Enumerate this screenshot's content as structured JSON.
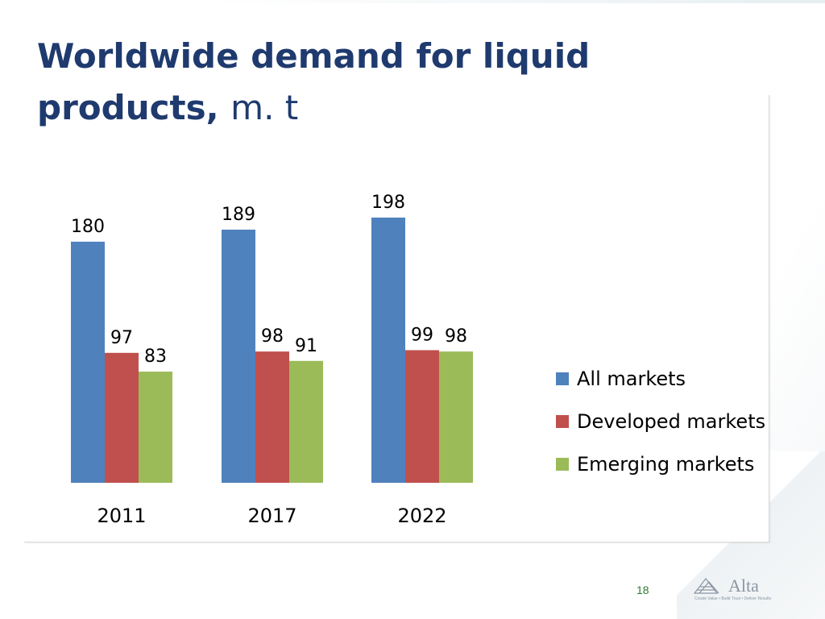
{
  "slide": {
    "title_bold": "Worldwide demand for liquid products,",
    "title_unit": "m. t",
    "page_number": "18",
    "logo": {
      "name": "Alta",
      "tagline": "Create Value • Build Trust • Deliver Results"
    }
  },
  "chart_data": {
    "type": "bar",
    "title": "",
    "xlabel": "",
    "ylabel": "",
    "categories": [
      "2011",
      "2017",
      "2022"
    ],
    "series": [
      {
        "name": "All markets",
        "color": "#4f81bd",
        "values": [
          180,
          189,
          198
        ]
      },
      {
        "name": "Developed markets",
        "color": "#c0504d",
        "values": [
          97,
          98,
          99
        ]
      },
      {
        "name": "Emerging markets",
        "color": "#9bbb59",
        "values": [
          83,
          91,
          98
        ]
      }
    ],
    "ylim": [
      0,
      210
    ],
    "grid": false,
    "data_labels": true,
    "legend": "right"
  }
}
